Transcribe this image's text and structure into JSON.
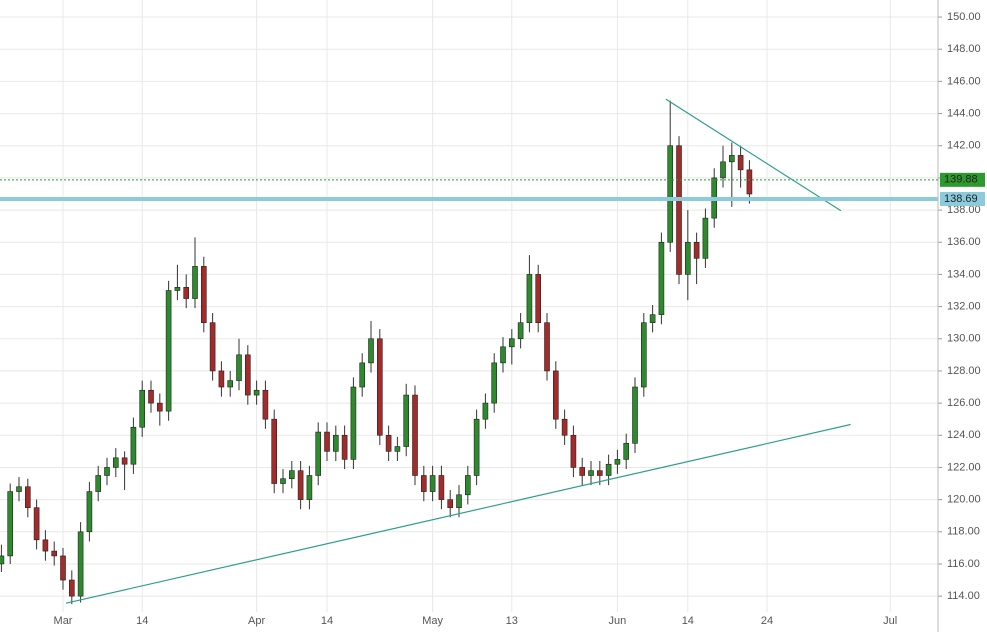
{
  "chart_data": {
    "type": "candlestick",
    "x": [
      -7,
      -6,
      -5,
      -4,
      -3,
      -2,
      -1,
      0,
      1,
      2,
      3,
      4,
      5,
      6,
      7,
      8,
      9,
      10,
      11,
      12,
      13,
      14,
      15,
      16,
      17,
      18,
      19,
      20,
      21,
      22,
      23,
      24,
      25,
      26,
      27,
      28,
      29,
      30,
      31,
      32,
      33,
      34,
      35,
      36,
      37,
      38,
      39,
      40,
      41,
      42,
      43,
      44,
      45,
      46,
      47,
      48,
      49,
      50,
      51,
      52,
      53,
      54,
      55,
      56,
      57,
      58,
      59,
      60,
      61,
      62,
      63,
      64,
      65,
      66,
      67,
      68,
      69,
      70,
      71,
      72,
      73,
      74,
      75,
      76,
      77,
      78
    ],
    "open": [
      116.0,
      116.5,
      120.5,
      120.8,
      119.5,
      117.5,
      116.8,
      116.5,
      115.0,
      114.0,
      118.0,
      120.5,
      121.5,
      122.0,
      122.6,
      122.2,
      124.5,
      126.8,
      126.0,
      125.5,
      133.0,
      133.2,
      132.5,
      134.5,
      131.0,
      128.0,
      127.0,
      127.4,
      129.0,
      126.5,
      126.8,
      125.0,
      121.0,
      121.3,
      121.8,
      120.0,
      121.5,
      124.2,
      123.0,
      124.0,
      122.5,
      127.0,
      128.5,
      130.0,
      124.0,
      123.0,
      123.3,
      126.5,
      121.5,
      120.5,
      121.5,
      120.0,
      119.5,
      120.3,
      121.5,
      125.0,
      126.0,
      128.5,
      129.5,
      130.0,
      131.0,
      134.0,
      131.0,
      128.0,
      125.0,
      124.0,
      122.0,
      121.5,
      121.8,
      121.5,
      122.2,
      122.5,
      123.5,
      127.0,
      131.0,
      131.5,
      136.0,
      142.0,
      134.0,
      136.0,
      135.0,
      137.5,
      140.0,
      141.0,
      141.4,
      140.5
    ],
    "high": [
      117.2,
      121.0,
      121.4,
      121.3,
      120.0,
      118.1,
      117.4,
      117.0,
      115.6,
      118.6,
      121.1,
      122.1,
      122.6,
      123.2,
      123.0,
      125.1,
      127.4,
      127.4,
      126.6,
      133.6,
      134.6,
      134.0,
      136.3,
      135.1,
      131.6,
      128.6,
      128.0,
      130.0,
      129.6,
      127.4,
      127.4,
      125.6,
      121.9,
      122.4,
      122.4,
      122.1,
      124.8,
      124.8,
      124.6,
      124.6,
      127.6,
      129.1,
      131.1,
      130.6,
      124.6,
      123.9,
      127.2,
      127.1,
      122.1,
      122.1,
      122.1,
      120.6,
      120.9,
      122.1,
      125.6,
      126.6,
      129.1,
      130.1,
      130.6,
      131.6,
      135.2,
      134.6,
      131.6,
      128.6,
      125.6,
      124.6,
      122.6,
      122.4,
      122.4,
      122.8,
      123.1,
      124.1,
      127.6,
      131.6,
      132.1,
      136.6,
      144.8,
      142.6,
      138.0,
      136.6,
      138.1,
      140.6,
      142.0,
      142.2,
      142.0,
      141.1
    ],
    "low": [
      115.5,
      116.0,
      119.9,
      118.9,
      116.9,
      116.2,
      115.9,
      114.4,
      113.5,
      113.6,
      117.4,
      119.9,
      120.9,
      121.4,
      120.6,
      121.6,
      123.9,
      125.4,
      124.6,
      124.9,
      132.4,
      131.9,
      131.9,
      130.4,
      127.4,
      126.4,
      126.4,
      126.8,
      125.9,
      125.9,
      124.4,
      120.4,
      120.4,
      120.7,
      119.4,
      119.4,
      120.9,
      122.4,
      122.4,
      121.9,
      121.9,
      126.4,
      127.9,
      123.4,
      122.4,
      122.4,
      122.7,
      120.9,
      119.9,
      119.9,
      119.4,
      118.9,
      118.9,
      119.7,
      120.9,
      124.4,
      125.4,
      127.9,
      128.4,
      129.4,
      130.4,
      130.4,
      127.4,
      124.4,
      123.4,
      121.4,
      120.9,
      120.9,
      120.9,
      120.9,
      121.6,
      121.9,
      122.9,
      126.4,
      130.4,
      130.9,
      135.4,
      133.4,
      132.4,
      133.4,
      134.4,
      136.9,
      139.4,
      138.2,
      139.4,
      138.4
    ],
    "close": [
      116.5,
      120.5,
      120.8,
      119.5,
      117.5,
      116.8,
      116.5,
      115.0,
      114.0,
      118.0,
      120.5,
      121.5,
      122.0,
      122.6,
      122.2,
      124.5,
      126.8,
      126.0,
      125.5,
      133.0,
      133.2,
      132.5,
      134.5,
      131.0,
      128.0,
      127.0,
      127.4,
      129.0,
      126.5,
      126.8,
      125.0,
      121.0,
      121.3,
      121.8,
      120.0,
      121.5,
      124.2,
      123.0,
      124.0,
      122.5,
      127.0,
      128.5,
      130.0,
      124.0,
      123.0,
      123.3,
      126.5,
      121.5,
      120.5,
      121.5,
      120.0,
      119.5,
      120.3,
      121.5,
      125.0,
      126.0,
      128.5,
      129.5,
      130.0,
      131.0,
      134.0,
      131.0,
      128.0,
      125.0,
      124.0,
      122.0,
      121.5,
      121.8,
      121.5,
      122.2,
      122.5,
      123.5,
      127.0,
      131.0,
      131.5,
      136.0,
      142.0,
      134.0,
      136.0,
      135.0,
      137.5,
      140.0,
      141.0,
      141.4,
      140.5,
      139.0
    ],
    "up_color": "#2d8a2d",
    "down_color": "#a52a2a",
    "wick_color": "#333333",
    "xlim": [
      -7.16,
      99.43
    ],
    "ylim": [
      111.77,
      151.06
    ],
    "xticks": [
      {
        "value": 0,
        "label": "Mar"
      },
      {
        "value": 9,
        "label": "14"
      },
      {
        "value": 22,
        "label": "Apr"
      },
      {
        "value": 30,
        "label": "14"
      },
      {
        "value": 42,
        "label": "May"
      },
      {
        "value": 51,
        "label": "13"
      },
      {
        "value": 63,
        "label": "Jun"
      },
      {
        "value": 71,
        "label": "14"
      },
      {
        "value": 80,
        "label": "24"
      },
      {
        "value": 94,
        "label": "Jul"
      }
    ],
    "yticks": [
      {
        "value": 114,
        "label": "114.00"
      },
      {
        "value": 116,
        "label": "116.00"
      },
      {
        "value": 118,
        "label": "118.00"
      },
      {
        "value": 120,
        "label": "120.00"
      },
      {
        "value": 122,
        "label": "122.00"
      },
      {
        "value": 124,
        "label": "124.00"
      },
      {
        "value": 126,
        "label": "126.00"
      },
      {
        "value": 128,
        "label": "128.00"
      },
      {
        "value": 130,
        "label": "130.00"
      },
      {
        "value": 132,
        "label": "132.00"
      },
      {
        "value": 134,
        "label": "134.00"
      },
      {
        "value": 136,
        "label": "136.00"
      },
      {
        "value": 138,
        "label": "138.00"
      },
      {
        "value": 140,
        "label": "140.00"
      },
      {
        "value": 142,
        "label": "142.00"
      },
      {
        "value": 144,
        "label": "144.00"
      },
      {
        "value": 146,
        "label": "146.00"
      },
      {
        "value": 148,
        "label": "148.00"
      },
      {
        "value": 150,
        "label": "150.00"
      }
    ],
    "grid": true,
    "price_lines": [
      {
        "value": 139.88,
        "label": "139.88",
        "color": "#2d9a2d",
        "style": "dotted"
      },
      {
        "value": 138.69,
        "label": "138.69",
        "color": "#8ccbdc",
        "style": "thick"
      }
    ],
    "trendlines": [
      {
        "x": [
          0.34,
          89.5
        ],
        "y": [
          113.56,
          124.67
        ],
        "color": "#2e9e8e"
      },
      {
        "x": [
          68.5,
          88.4
        ],
        "y": [
          144.9,
          137.96
        ],
        "color": "#2e9e8e"
      }
    ]
  }
}
